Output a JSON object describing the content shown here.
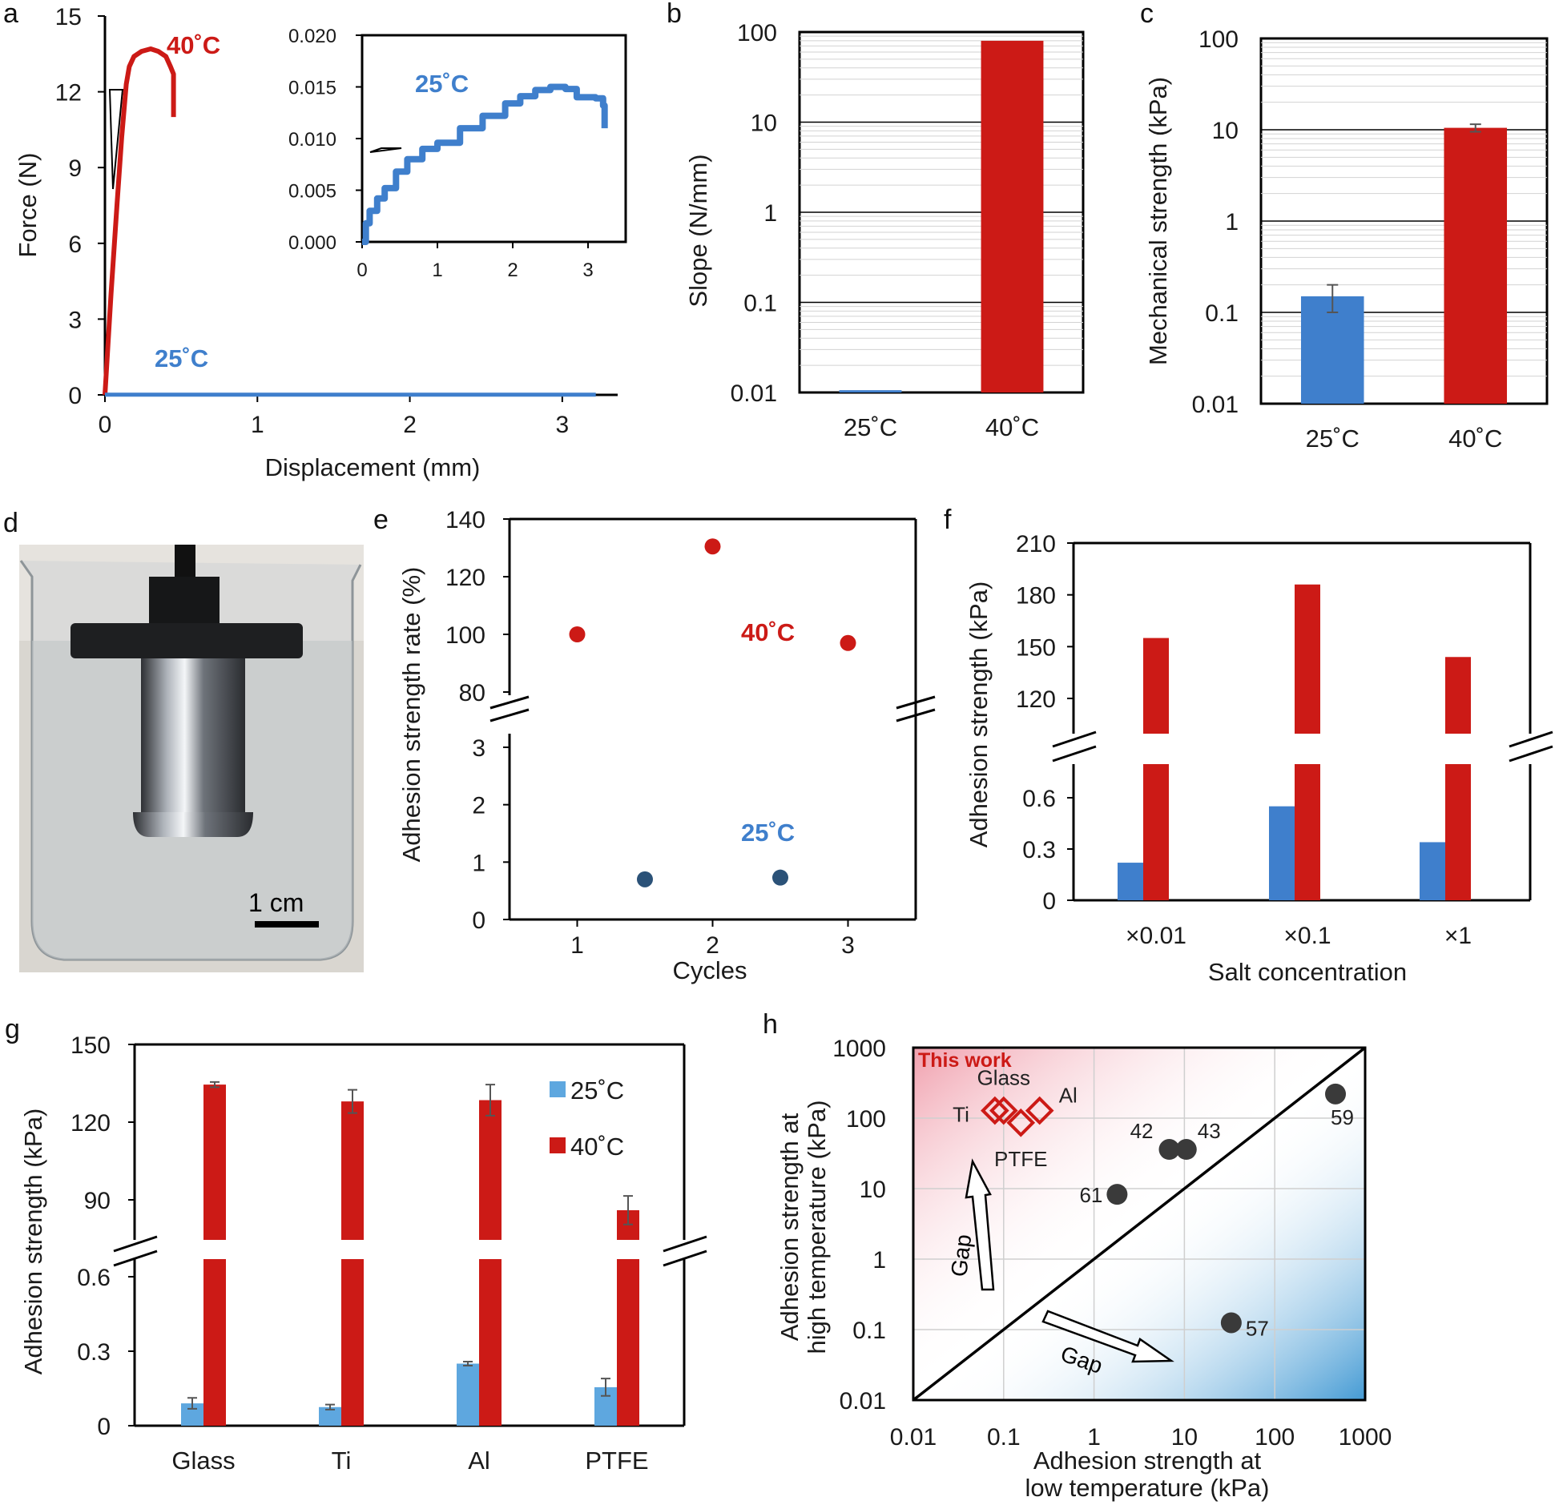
{
  "panel_labels": [
    "a",
    "b",
    "c",
    "d",
    "e",
    "f",
    "g",
    "h"
  ],
  "colors": {
    "red": "#cc1a16",
    "blue": "#3f7fcc",
    "lightblue": "#5ea7df",
    "navy": "#2b5278",
    "dark": "#3a3a3a"
  },
  "chart_data": [
    {
      "panel": "a",
      "type": "line",
      "xlabel": "Displacement (mm)",
      "ylabel": "Force (N)",
      "xlim": [
        0,
        3.5
      ],
      "ylim": [
        0,
        15
      ],
      "xticks": [
        0,
        1,
        2,
        3
      ],
      "yticks": [
        0,
        3,
        6,
        9,
        12,
        15
      ],
      "series": [
        {
          "name": "40˚C",
          "label": "40˚C",
          "color": "#cc1a16",
          "points": [
            [
              0,
              0
            ],
            [
              0.04,
              4
            ],
            [
              0.08,
              7.6
            ],
            [
              0.11,
              10.2
            ],
            [
              0.14,
              12.3
            ],
            [
              0.16,
              13.0
            ],
            [
              0.19,
              13.4
            ],
            [
              0.24,
              13.6
            ],
            [
              0.3,
              13.7
            ],
            [
              0.35,
              13.6
            ],
            [
              0.4,
              13.4
            ],
            [
              0.43,
              13.0
            ],
            [
              0.45,
              12.7
            ],
            [
              0.45,
              11.0
            ]
          ]
        },
        {
          "name": "25˚C",
          "label": "25˚C",
          "color": "#3f7fcc",
          "points": [
            [
              0,
              0.01
            ],
            [
              3.22,
              0.01
            ]
          ]
        }
      ],
      "inset": {
        "xlim": [
          0,
          3.5
        ],
        "ylim": [
          0,
          0.02
        ],
        "xticks": [
          0,
          1,
          2,
          3
        ],
        "ytick_labels": [
          "0.000",
          "0.005",
          "0.010",
          "0.015",
          "0.020"
        ],
        "series": [
          {
            "name": "25˚C",
            "label": "25˚C",
            "color": "#3f7fcc",
            "points": [
              [
                0,
                0
              ],
              [
                0.05,
                0.0018
              ],
              [
                0.1,
                0.003
              ],
              [
                0.2,
                0.0042
              ],
              [
                0.3,
                0.0052
              ],
              [
                0.45,
                0.0068
              ],
              [
                0.6,
                0.008
              ],
              [
                0.8,
                0.009
              ],
              [
                1.0,
                0.0096
              ],
              [
                1.3,
                0.011
              ],
              [
                1.6,
                0.0122
              ],
              [
                1.9,
                0.0134
              ],
              [
                2.1,
                0.0141
              ],
              [
                2.3,
                0.0147
              ],
              [
                2.5,
                0.015
              ],
              [
                2.7,
                0.0148
              ],
              [
                2.85,
                0.014
              ],
              [
                3.1,
                0.0139
              ],
              [
                3.2,
                0.0132
              ],
              [
                3.22,
                0.011
              ]
            ]
          }
        ]
      }
    },
    {
      "panel": "b",
      "type": "bar",
      "ylabel": "Slope (N/mm)",
      "scale": "log",
      "ylim": [
        0.01,
        100
      ],
      "ytick_labels": [
        "0.01",
        "0.1",
        "1",
        "10",
        "100"
      ],
      "categories": [
        "25˚C",
        "40˚C"
      ],
      "values": [
        0.0106,
        80
      ]
    },
    {
      "panel": "c",
      "type": "bar",
      "ylabel": "Mechanical strength (kPa)",
      "scale": "log",
      "ylim": [
        0.01,
        100
      ],
      "ytick_labels": [
        "0.01",
        "0.1",
        "1",
        "10",
        "100"
      ],
      "categories": [
        "25˚C",
        "40˚C"
      ],
      "values": [
        0.15,
        10.5
      ],
      "errors": [
        0.05,
        1.0
      ]
    },
    {
      "panel": "e",
      "type": "scatter",
      "xlabel": "Cycles",
      "ylabel": "Adhesion strength rate (%)",
      "broken_axis": {
        "upper": {
          "ylim": [
            75,
            140
          ],
          "ticks": [
            80,
            100,
            120,
            140
          ]
        },
        "lower": {
          "ylim": [
            0,
            3.3
          ],
          "ticks": [
            0,
            1,
            2,
            3
          ]
        }
      },
      "xlim": [
        0.5,
        3.5
      ],
      "xticks": [
        1,
        2,
        3
      ],
      "series": [
        {
          "name": "40˚C",
          "label": "40˚C",
          "color": "#cc1a16",
          "x": [
            1,
            2,
            3
          ],
          "y": [
            100,
            130.5,
            97
          ]
        },
        {
          "name": "25˚C",
          "label": "25˚C",
          "color": "#2b5278",
          "x": [
            1.5,
            2.5
          ],
          "y": [
            0.7,
            0.73
          ]
        }
      ]
    },
    {
      "panel": "f",
      "type": "bar",
      "xlabel": "Salt concentration",
      "ylabel": "Adhesion strength (kPa)",
      "broken_axis": {
        "upper": {
          "ylim": [
            100,
            210
          ],
          "ticks": [
            120,
            150,
            180,
            210
          ]
        },
        "lower": {
          "ylim": [
            0,
            0.85
          ],
          "ticks_labels": [
            "0",
            "0.3",
            "0.6"
          ]
        }
      },
      "categories": [
        "×0.01",
        "×0.1",
        "×1"
      ],
      "series": [
        {
          "name": "25˚C",
          "color": "#3f7fcc",
          "values": [
            0.22,
            0.55,
            0.34
          ]
        },
        {
          "name": "40˚C",
          "color": "#cc1a16",
          "values": [
            155,
            186,
            144
          ]
        }
      ]
    },
    {
      "panel": "g",
      "type": "bar",
      "ylabel": "Adhesion strength (kPa)",
      "broken_axis": {
        "upper": {
          "ylim": [
            82,
            150
          ],
          "ticks": [
            90,
            120,
            150
          ]
        },
        "lower": {
          "ylim": [
            0,
            0.75
          ],
          "ticks_labels": [
            "0",
            "0.3",
            "0.6"
          ]
        }
      },
      "categories": [
        "Glass",
        "Ti",
        "Al",
        "PTFE"
      ],
      "series": [
        {
          "name": "25˚C",
          "label": "25˚C",
          "color": "#5ea7df",
          "values": [
            0.09,
            0.075,
            0.25,
            0.155
          ],
          "errors": [
            0.022,
            0.01,
            0.008,
            0.035
          ]
        },
        {
          "name": "40˚C",
          "label": "40˚C",
          "color": "#cc1a16",
          "values": [
            134.5,
            128,
            128.5,
            86
          ],
          "errors": [
            1,
            4.5,
            6,
            5.5
          ]
        }
      ]
    },
    {
      "panel": "h",
      "type": "scatter",
      "scale": "log",
      "xlim": [
        0.01,
        1000
      ],
      "ylim": [
        0.01,
        1000
      ],
      "tick_labels": [
        "0.01",
        "0.1",
        "1",
        "10",
        "100",
        "1000"
      ],
      "xlabel_lines": [
        "Adhesion strength at",
        "low temperature (kPa)"
      ],
      "ylabel_lines": [
        "Adhesion strength at",
        "high temperature (kPa)"
      ],
      "this_work_label": "This work",
      "this_work": [
        {
          "label": "Glass",
          "x": 0.1,
          "y": 128
        },
        {
          "label": "Ti",
          "x": 0.08,
          "y": 128
        },
        {
          "label": "Al",
          "x": 0.25,
          "y": 128
        },
        {
          "label": "PTFE",
          "x": 0.155,
          "y": 86
        }
      ],
      "references": [
        {
          "label": "42",
          "x": 6.8,
          "y": 36
        },
        {
          "label": "43",
          "x": 10.5,
          "y": 36
        },
        {
          "label": "61",
          "x": 1.8,
          "y": 8.3
        },
        {
          "label": "59",
          "x": 470,
          "y": 220
        },
        {
          "label": "57",
          "x": 33,
          "y": 0.125
        }
      ],
      "gap_label": "Gap"
    }
  ],
  "photo": {
    "scale_bar_label": "1 cm"
  }
}
